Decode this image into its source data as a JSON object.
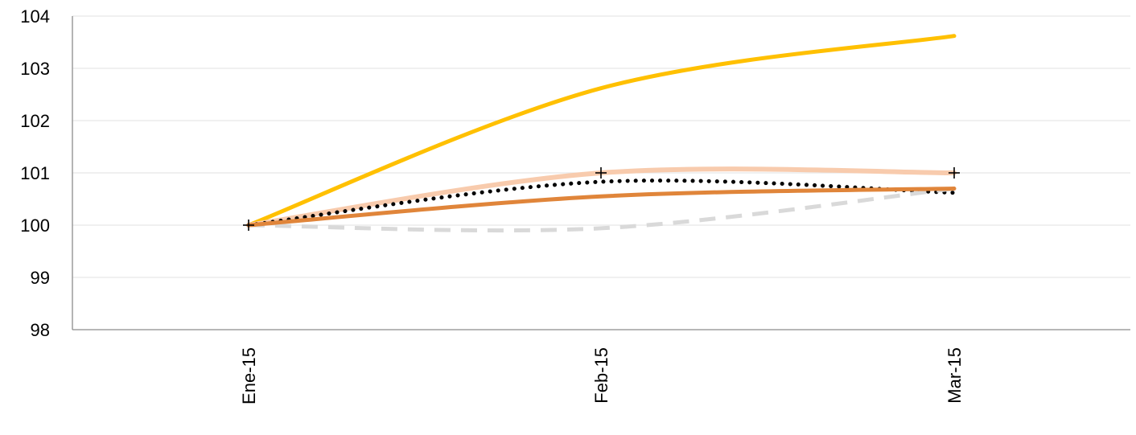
{
  "chart_data": {
    "type": "line",
    "categories": [
      "Ene-15",
      "Feb-15",
      "Mar-15"
    ],
    "ylim": [
      98,
      104
    ],
    "yticks": [
      "98",
      "99",
      "100",
      "101",
      "102",
      "103",
      "104"
    ],
    "grid": true,
    "legend": "none",
    "series": [
      {
        "values": [
          100.0,
          102.62,
          103.62
        ],
        "color": "#FFC000",
        "style": "solid"
      },
      {
        "values": [
          100.0,
          101.0,
          101.0
        ],
        "color": "#F8CBAD",
        "style": "solid"
      },
      {
        "values": [
          100.0,
          100.83,
          100.62
        ],
        "color": "#000000",
        "style": "dotted"
      },
      {
        "values": [
          100.0,
          99.94,
          100.7
        ],
        "color": "#D9D9D9",
        "style": "dashed"
      },
      {
        "values": [
          100.0,
          100.55,
          100.7
        ],
        "color": "#E0853A",
        "style": "solid"
      }
    ],
    "markers": [
      {
        "category": "Ene-15",
        "value": 100.0
      },
      {
        "category": "Feb-15",
        "value": 101.0
      },
      {
        "category": "Mar-15",
        "value": 101.0
      }
    ]
  }
}
